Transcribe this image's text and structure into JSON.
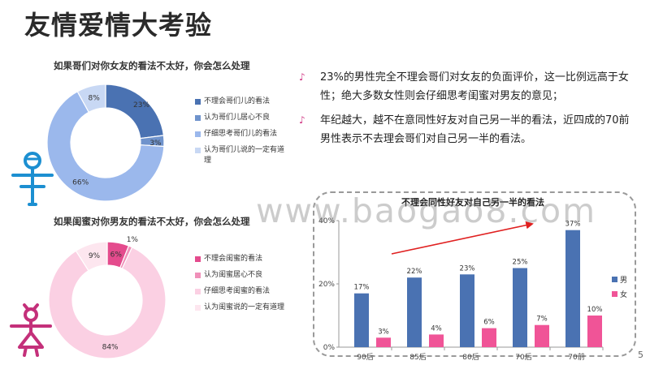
{
  "slide": {
    "title": "友情爱情大考验",
    "page_number": "5",
    "watermark": "www.baogao8.com"
  },
  "bullets": [
    "23%的男性完全不理会哥们对女友的负面评价，这一比例远高于女性；绝大多数女性则会仔细思考闺蜜对男友的意见；",
    "年纪越大，越不在意同性好友对自己另一半的看法，近四成的70前男性表示不去理会哥们对自己另一半的看法。"
  ],
  "chart_data": [
    {
      "type": "pie",
      "title": "如果哥们对你女友的看法不太好，你会怎么处理",
      "categories": [
        "不理会哥们儿的看法",
        "认为哥们儿居心不良",
        "仔细思考哥们儿的看法",
        "认为哥们儿说的一定有道理"
      ],
      "values": [
        23,
        3,
        66,
        8
      ],
      "labels": [
        "23%",
        "3%",
        "66%",
        "8%"
      ],
      "colors": [
        "#4a72b2",
        "#6f93cc",
        "#9bb8ec",
        "#c8d8f4"
      ],
      "legend_position": "right"
    },
    {
      "type": "pie",
      "title": "如果闺蜜对你男友的看法不太好，你会怎么处理",
      "categories": [
        "不理会闺蜜的看法",
        "认为闺蜜居心不良",
        "仔细思考闺蜜的看法",
        "认为闺蜜说的一定有道理"
      ],
      "values": [
        6,
        1,
        84,
        9
      ],
      "labels": [
        "6%",
        "1%",
        "84%",
        "9%"
      ],
      "colors": [
        "#e44b8d",
        "#f090b9",
        "#fbd0e3",
        "#fde6ef"
      ],
      "legend_position": "right"
    },
    {
      "type": "bar",
      "title": "不理会同性好友对自己另一半的看法",
      "categories": [
        "90后",
        "85后",
        "80后",
        "70后",
        "70前"
      ],
      "series": [
        {
          "name": "男",
          "values": [
            17,
            22,
            23,
            25,
            37
          ],
          "color": "#4a72b2",
          "labels": [
            "17%",
            "22%",
            "23%",
            "25%",
            "37%"
          ]
        },
        {
          "name": "女",
          "values": [
            3,
            4,
            6,
            7,
            10
          ],
          "color": "#f05497",
          "labels": [
            "3%",
            "4%",
            "6%",
            "7%",
            "10%"
          ]
        }
      ],
      "ylim": [
        0,
        40
      ],
      "yticks": [
        "0%",
        "20%",
        "40%"
      ],
      "legend_position": "right",
      "trend_arrow_color": "#e02020"
    }
  ]
}
